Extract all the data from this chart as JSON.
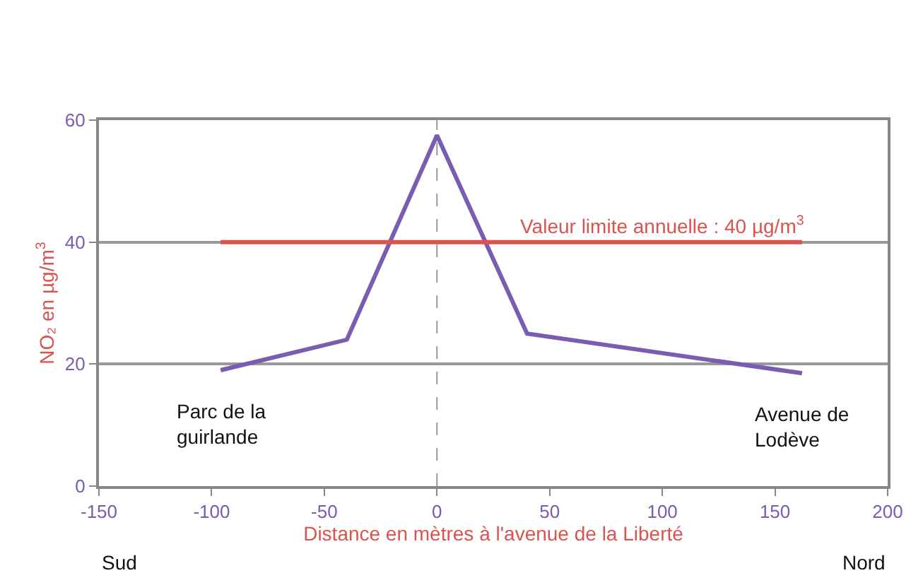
{
  "chart_data": {
    "type": "line",
    "xlabel": "Distance en mètres à l'avenue de la Liberté",
    "ylabel": "NO₂ en µg/m$^{3}$",
    "x": [
      -96,
      -40,
      0,
      40,
      162
    ],
    "series": [
      {
        "color": "#7b5cb0",
        "values": [
          19,
          24,
          57.5,
          25,
          18.5
        ]
      },
      {
        "color": "#d9534f",
        "x": [
          -96,
          162
        ],
        "values": [
          40,
          40
        ]
      }
    ],
    "xlim": [
      -150,
      200
    ],
    "xticks": [
      -150,
      -100,
      -50,
      0,
      50,
      100,
      150,
      200
    ],
    "ylim": [
      0,
      60
    ],
    "yticks": [
      0,
      20,
      40,
      60
    ],
    "grid": "y",
    "marker": "none",
    "line_style": "solid",
    "ref_lines": [
      {
        "axis": "x",
        "value": 0,
        "color": "#999999",
        "line_style": "dashed"
      }
    ],
    "annotations": [
      {
        "text": "Valeur limite annuelle : 40 µg/m$^{3}$",
        "x": 100,
        "y": 40
      },
      {
        "text": "Parc de la\nguirlande",
        "x": -96,
        "y": 19
      },
      {
        "text": "Avenue de\nLodève",
        "x": 162,
        "y": 18.5
      },
      "Sud",
      "Nord"
    ]
  }
}
